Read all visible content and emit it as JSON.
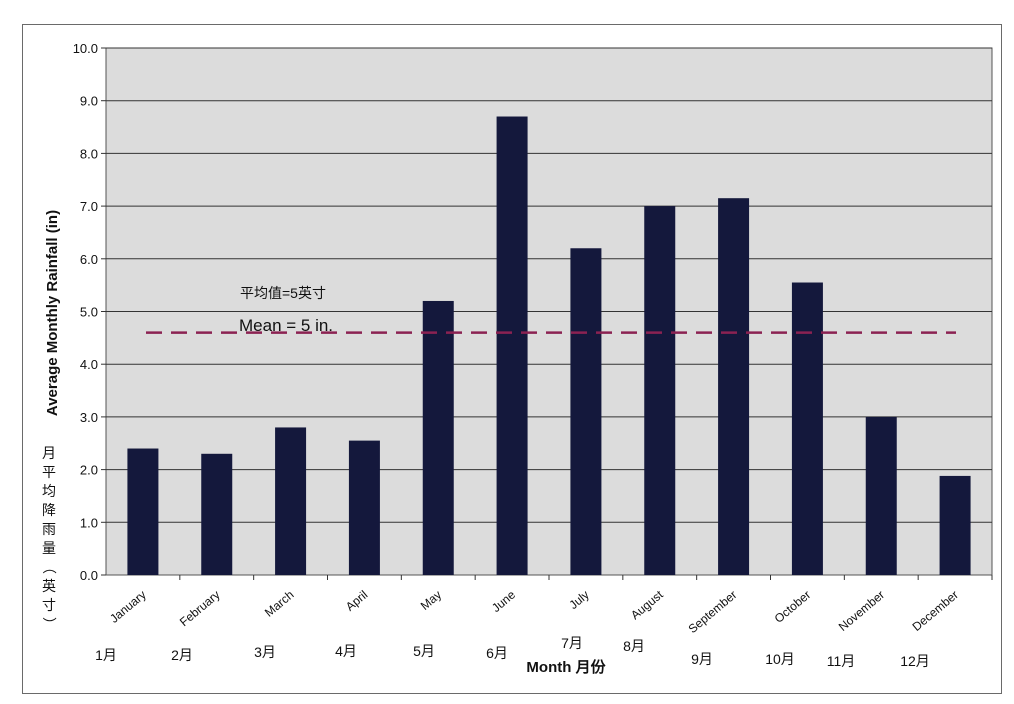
{
  "chart_data": {
    "type": "bar",
    "categories": [
      "January",
      "February",
      "March",
      "April",
      "May",
      "June",
      "July",
      "August",
      "September",
      "October",
      "November",
      "December"
    ],
    "categories_cn": [
      "1月",
      "2月",
      "3月",
      "4月",
      "5月",
      "6月",
      "7月",
      "8月",
      "9月",
      "10月",
      "11月",
      "12月"
    ],
    "values": [
      2.4,
      2.3,
      2.8,
      2.55,
      5.2,
      8.7,
      6.2,
      7.0,
      7.15,
      5.55,
      3.0,
      1.88
    ],
    "ylim": [
      0,
      10
    ],
    "yticks": [
      "0.0",
      "1.0",
      "2.0",
      "3.0",
      "4.0",
      "5.0",
      "6.0",
      "7.0",
      "8.0",
      "9.0",
      "10.0"
    ],
    "ylabel": "Average Monthly Rainfall (in)",
    "ylabel_cn": "月平均降雨量（英寸）",
    "xlabel": "Month 月份",
    "mean_line": {
      "value": 4.6,
      "label": "Mean = 5 in.",
      "label_cn": "平均值=5英寸"
    },
    "grid": true,
    "colors": {
      "bar": "#14183c",
      "plot_bg": "#dcdcdc",
      "mean_line": "#8b2252",
      "grid": "#333333"
    }
  }
}
